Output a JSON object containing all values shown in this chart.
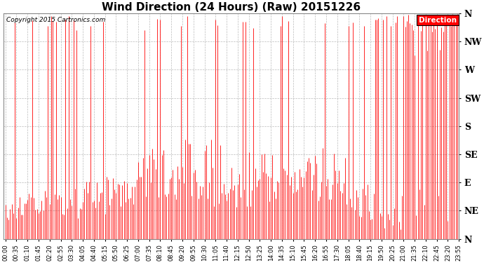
{
  "title": "Wind Direction (24 Hours) (Raw) 20151226",
  "copyright": "Copyright 2015 Cartronics.com",
  "legend_label": "Direction",
  "background_color": "#ffffff",
  "plot_bg_color": "#ffffff",
  "line_color": "#ff0000",
  "grid_color": "#aaaaaa",
  "ytick_labels": [
    "N",
    "NE",
    "E",
    "SE",
    "S",
    "SW",
    "W",
    "NW",
    "N"
  ],
  "ytick_values": [
    0,
    45,
    90,
    135,
    180,
    225,
    270,
    315,
    360
  ],
  "ylim": [
    0,
    360
  ],
  "title_fontsize": 11,
  "num_points": 288,
  "interval_minutes": 5,
  "tick_every": 7
}
